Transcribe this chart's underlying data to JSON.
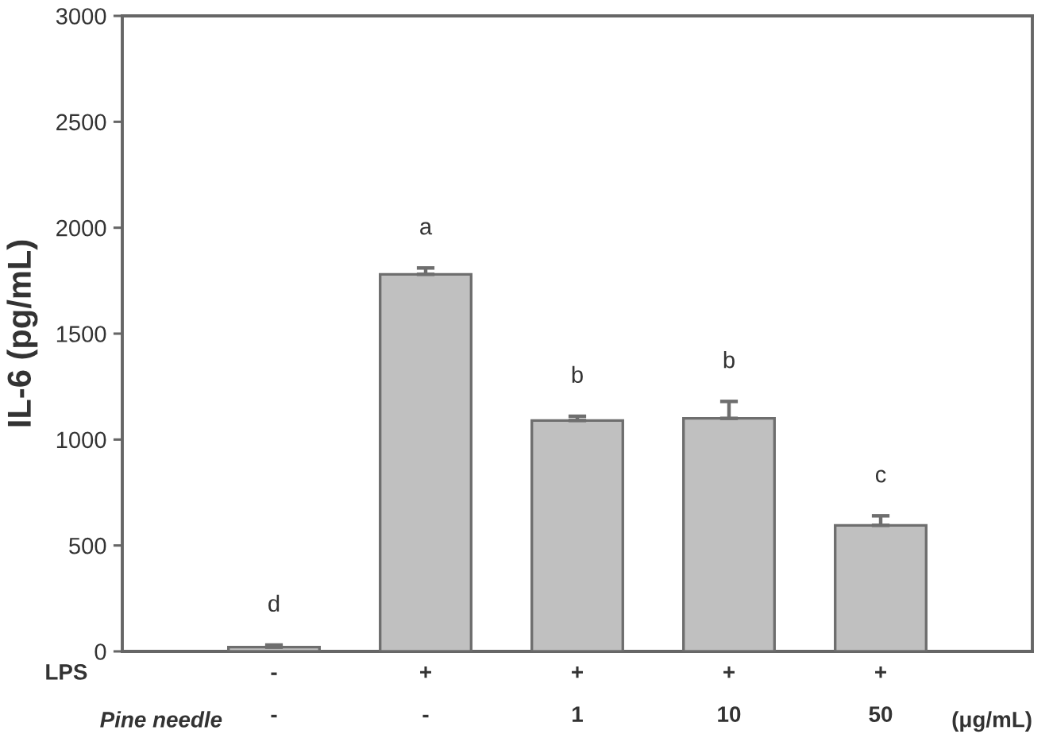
{
  "chart_data": {
    "type": "bar",
    "ylabel": "IL-6 (pg/mL)",
    "categories": [
      "-\n-",
      "+\n-",
      "+\n1",
      "+\n10",
      "+\n50"
    ],
    "values": [
      20,
      1780,
      1090,
      1100,
      595
    ],
    "color": "#c0c0c0",
    "errors": [
      [
        20,
        30
      ],
      [
        1780,
        1810
      ],
      [
        1090,
        1110
      ],
      [
        1100,
        1180
      ],
      [
        595,
        640
      ]
    ],
    "ylim": [
      0,
      3000
    ],
    "yticks": [
      0,
      500,
      1000,
      1500,
      2000,
      2500,
      3000
    ],
    "annotations": [
      "LPS",
      "Pine needle",
      "(μg/mL)",
      {
        "text": "d",
        "x": "-\n-",
        "y": 20
      },
      {
        "text": "a",
        "x": "+\n-",
        "y": 1780
      },
      {
        "text": "b",
        "x": "+\n1",
        "y": 1090
      },
      {
        "text": "b",
        "x": "+\n10",
        "y": 1100
      },
      {
        "text": "c",
        "x": "+\n50",
        "y": 595
      }
    ]
  }
}
